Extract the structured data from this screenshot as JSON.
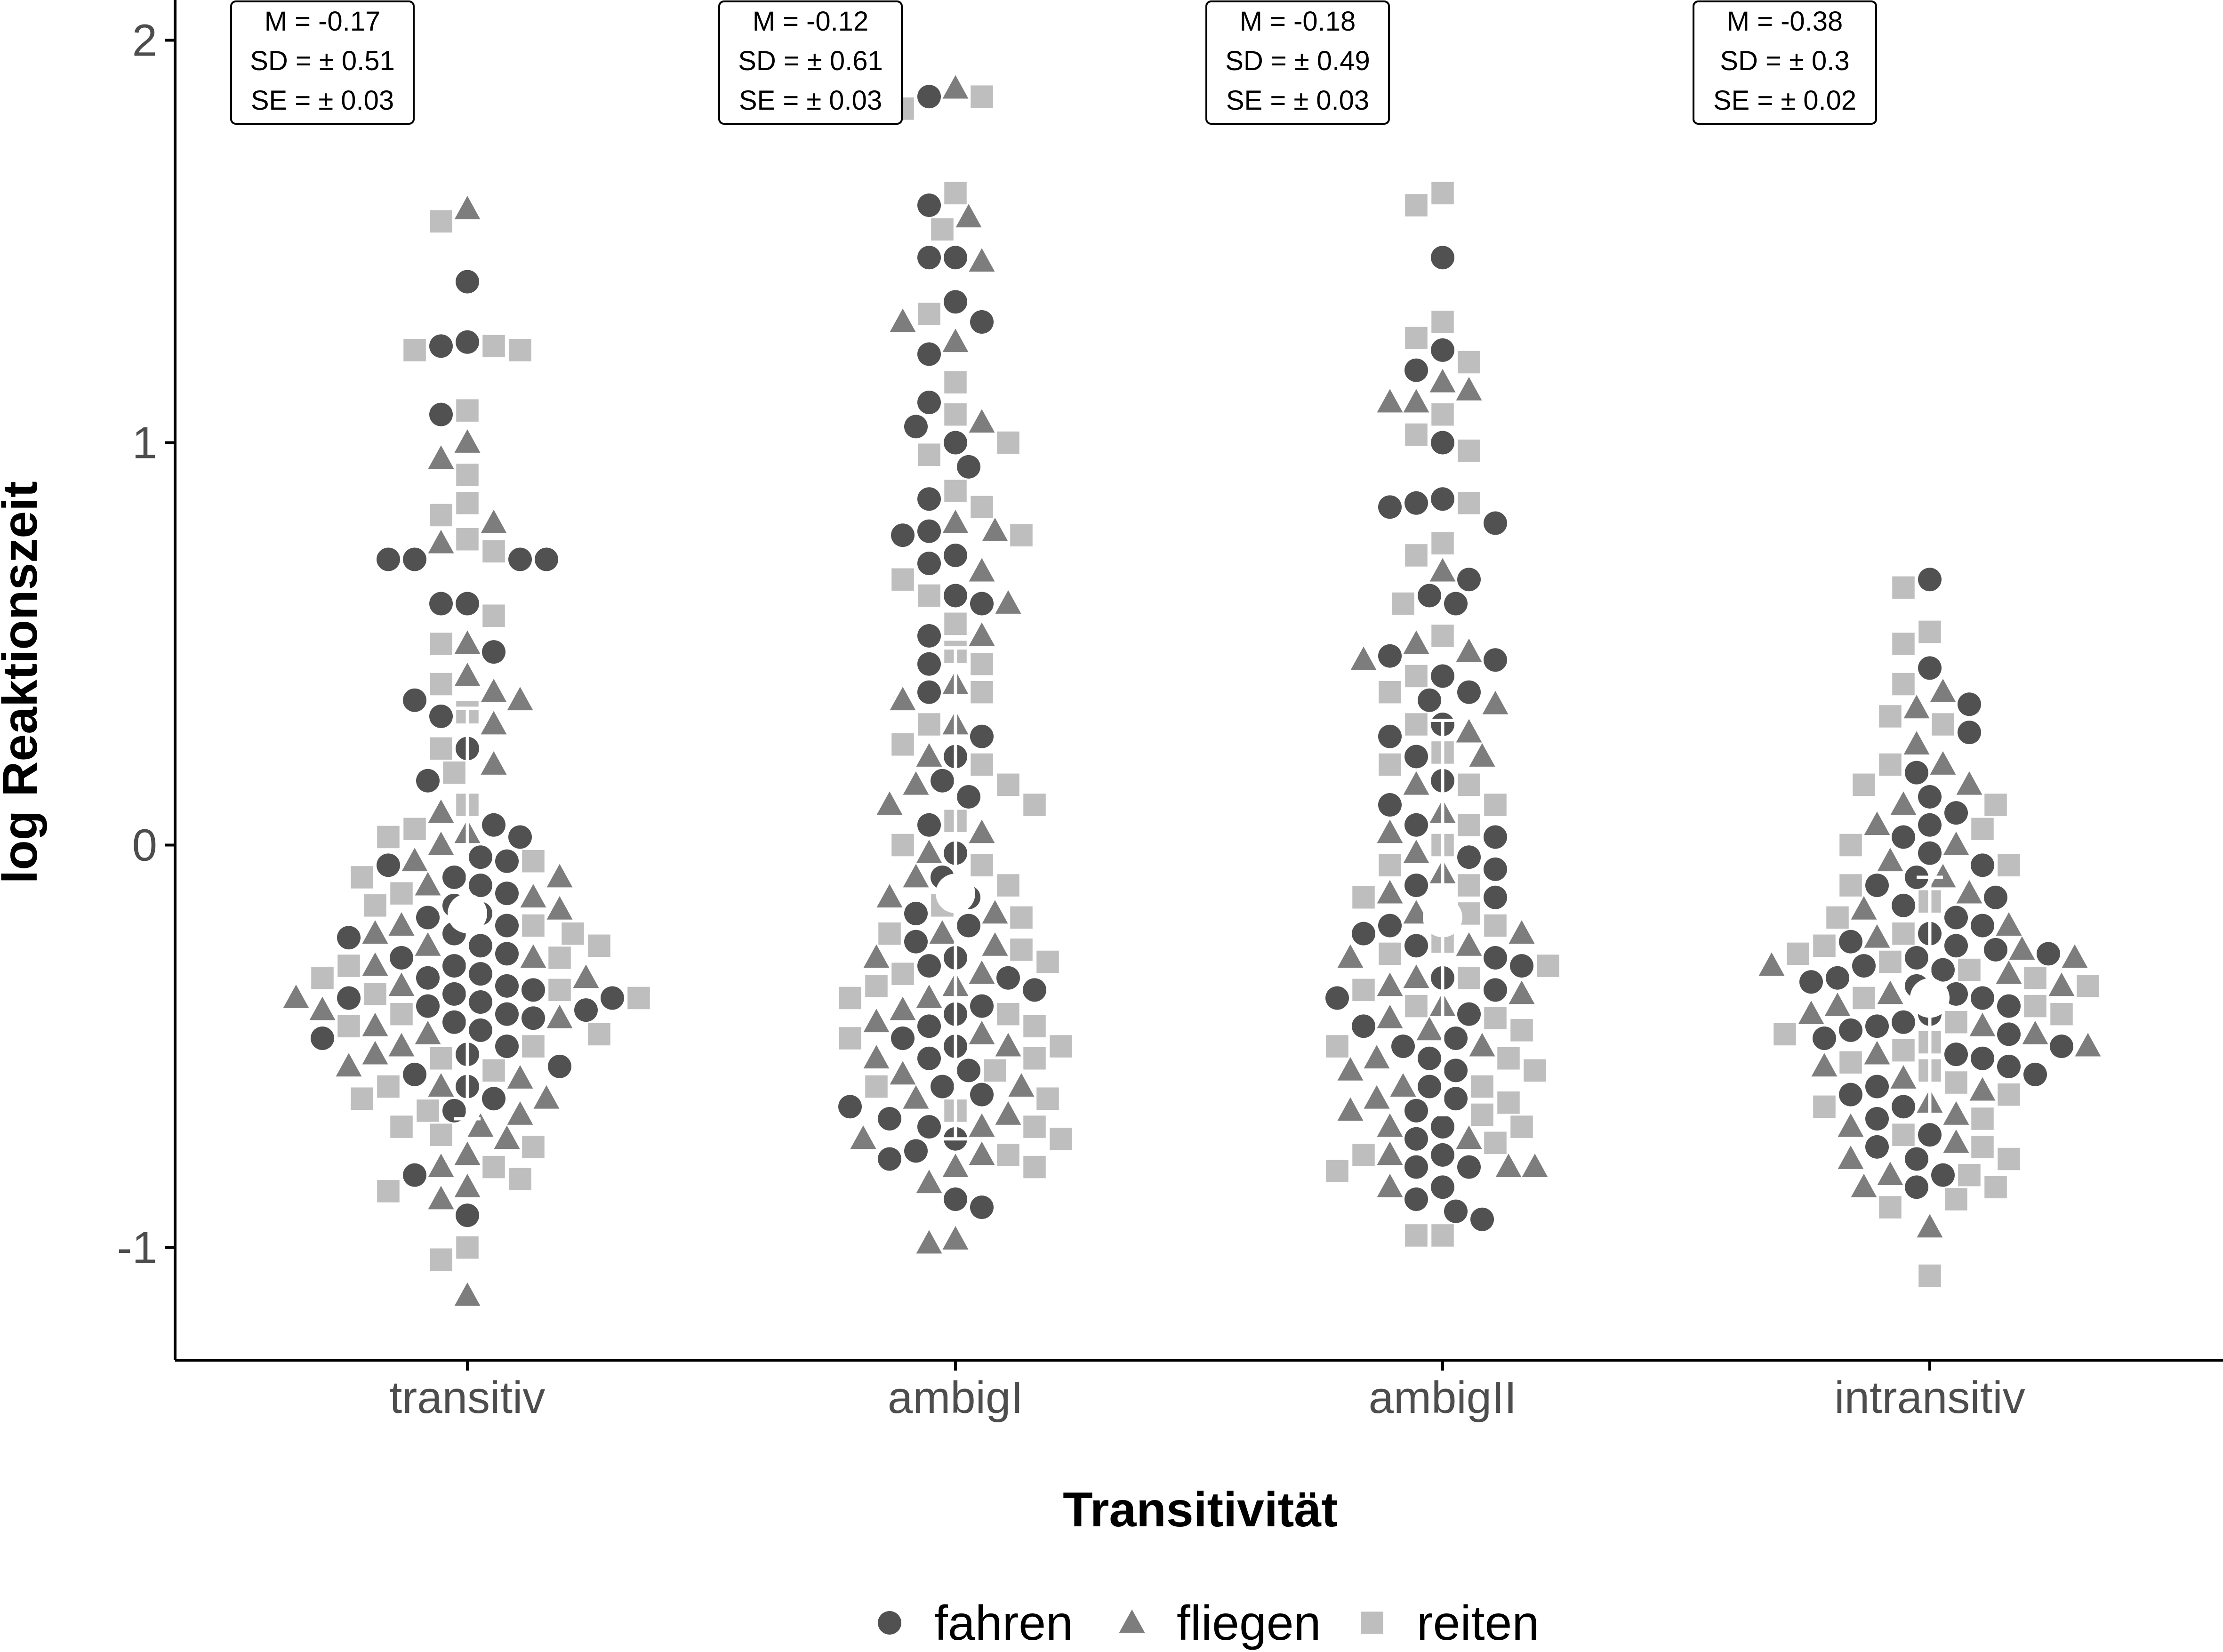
{
  "chart_data": {
    "type": "scatter",
    "subtype": "beeswarm-with-mean-and-sd",
    "xlabel": "Transitivität",
    "ylabel": "log Reaktionszeit",
    "categories": [
      "transitiv",
      "ambigI",
      "ambigII",
      "intransitiv"
    ],
    "ylim": [
      -1.28,
      2.1
    ],
    "yticks": [
      -1,
      0,
      1,
      2
    ],
    "ytick_labels": [
      "-1",
      "0",
      "1",
      "2"
    ],
    "grid": false,
    "legend_position": "bottom",
    "series": [
      {
        "name": "fahren",
        "marker": "circle",
        "color": "#333333"
      },
      {
        "name": "fliegen",
        "marker": "triangle",
        "color": "#666666"
      },
      {
        "name": "reiten",
        "marker": "square",
        "color": "#b3b3b3"
      }
    ],
    "summary": [
      {
        "category": "transitiv",
        "mean": -0.17,
        "sd": 0.51,
        "se": 0.03,
        "label_mean": "M = -0.17",
        "label_sd": "SD = ± 0.51",
        "label_se": "SE = ± 0.03"
      },
      {
        "category": "ambigI",
        "mean": -0.12,
        "sd": 0.61,
        "se": 0.03,
        "label_mean": "M = -0.12",
        "label_sd": "SD = ± 0.61",
        "label_se": "SE = ± 0.03"
      },
      {
        "category": "ambigII",
        "mean": -0.18,
        "sd": 0.49,
        "se": 0.03,
        "label_mean": "M = -0.18",
        "label_sd": "SD = ± 0.49",
        "label_se": "SE = ± 0.03"
      },
      {
        "category": "intransitiv",
        "mean": -0.38,
        "sd": 0.3,
        "se": 0.02,
        "label_mean": "M = -0.38",
        "label_sd": "SD = ± 0.3",
        "label_se": "SE = ± 0.02"
      }
    ],
    "points": {
      "transitiv": {
        "fahren": [
          1.4,
          1.25,
          1.24,
          1.07,
          0.71,
          0.71,
          0.71,
          0.71,
          0.6,
          0.6,
          0.48,
          0.36,
          0.32,
          0.24,
          0.16,
          0.05,
          0.02,
          -0.03,
          -0.04,
          -0.05,
          -0.08,
          -0.1,
          -0.12,
          -0.15,
          -0.17,
          -0.18,
          -0.2,
          -0.22,
          -0.23,
          -0.25,
          -0.27,
          -0.28,
          -0.3,
          -0.32,
          -0.33,
          -0.35,
          -0.36,
          -0.37,
          -0.38,
          -0.38,
          -0.39,
          -0.4,
          -0.41,
          -0.42,
          -0.43,
          -0.44,
          -0.46,
          -0.48,
          -0.5,
          -0.52,
          -0.55,
          -0.57,
          -0.6,
          -0.63,
          -0.66,
          -0.82,
          -0.92
        ],
        "fliegen": [
          1.58,
          1.0,
          0.96,
          0.8,
          0.75,
          0.5,
          0.42,
          0.38,
          0.36,
          0.3,
          0.2,
          0.08,
          0.03,
          0.0,
          -0.04,
          -0.08,
          -0.1,
          -0.13,
          -0.16,
          -0.2,
          -0.22,
          -0.25,
          -0.28,
          -0.3,
          -0.33,
          -0.35,
          -0.38,
          -0.41,
          -0.43,
          -0.45,
          -0.47,
          -0.5,
          -0.52,
          -0.55,
          -0.58,
          -0.6,
          -0.63,
          -0.67,
          -0.7,
          -0.73,
          -0.77,
          -0.8,
          -0.85,
          -0.88,
          -1.12
        ],
        "reiten": [
          1.55,
          1.24,
          1.23,
          1.23,
          1.08,
          0.92,
          0.85,
          0.82,
          0.76,
          0.73,
          0.57,
          0.5,
          0.4,
          0.33,
          0.24,
          0.18,
          0.1,
          0.04,
          0.02,
          -0.04,
          -0.08,
          -0.12,
          -0.15,
          -0.2,
          -0.22,
          -0.25,
          -0.28,
          -0.3,
          -0.33,
          -0.36,
          -0.37,
          -0.38,
          -0.42,
          -0.45,
          -0.47,
          -0.5,
          -0.53,
          -0.56,
          -0.6,
          -0.63,
          -0.66,
          -0.7,
          -0.72,
          -0.75,
          -0.8,
          -0.83,
          -0.86,
          -1.0,
          -1.03
        ]
      },
      "ambigI": {
        "fahren": [
          1.86,
          1.59,
          1.46,
          1.46,
          1.35,
          1.3,
          1.22,
          1.1,
          1.04,
          1.0,
          0.94,
          0.86,
          0.78,
          0.77,
          0.72,
          0.7,
          0.62,
          0.6,
          0.52,
          0.45,
          0.38,
          0.27,
          0.22,
          0.16,
          0.12,
          0.05,
          -0.02,
          -0.08,
          -0.13,
          -0.17,
          -0.2,
          -0.24,
          -0.28,
          -0.3,
          -0.33,
          -0.36,
          -0.4,
          -0.42,
          -0.45,
          -0.48,
          -0.5,
          -0.53,
          -0.56,
          -0.6,
          -0.62,
          -0.65,
          -0.68,
          -0.7,
          -0.73,
          -0.76,
          -0.78,
          -0.88,
          -0.9
        ],
        "fliegen": [
          1.88,
          1.56,
          1.45,
          1.3,
          1.25,
          1.05,
          0.8,
          0.78,
          0.68,
          0.6,
          0.52,
          0.4,
          0.36,
          0.3,
          0.22,
          0.15,
          0.1,
          0.03,
          -0.02,
          -0.08,
          -0.13,
          -0.17,
          -0.22,
          -0.25,
          -0.28,
          -0.32,
          -0.35,
          -0.38,
          -0.41,
          -0.44,
          -0.47,
          -0.5,
          -0.53,
          -0.57,
          -0.6,
          -0.63,
          -0.67,
          -0.7,
          -0.73,
          -0.77,
          -0.8,
          -0.84,
          -0.98,
          -0.99
        ],
        "reiten": [
          1.86,
          1.83,
          1.62,
          1.53,
          1.32,
          1.15,
          1.07,
          1.0,
          0.97,
          0.88,
          0.84,
          0.77,
          0.66,
          0.62,
          0.55,
          0.48,
          0.45,
          0.38,
          0.3,
          0.25,
          0.2,
          0.15,
          0.1,
          0.06,
          0.0,
          -0.05,
          -0.1,
          -0.15,
          -0.18,
          -0.22,
          -0.26,
          -0.29,
          -0.32,
          -0.35,
          -0.38,
          -0.42,
          -0.45,
          -0.48,
          -0.5,
          -0.53,
          -0.56,
          -0.6,
          -0.63,
          -0.66,
          -0.7,
          -0.73,
          -0.77,
          -0.8
        ]
      },
      "ambigII": {
        "fahren": [
          1.46,
          1.23,
          1.18,
          1.0,
          0.86,
          0.85,
          0.84,
          0.8,
          0.66,
          0.62,
          0.6,
          0.47,
          0.46,
          0.42,
          0.38,
          0.36,
          0.3,
          0.27,
          0.22,
          0.16,
          0.1,
          0.05,
          0.02,
          -0.03,
          -0.06,
          -0.1,
          -0.13,
          -0.17,
          -0.2,
          -0.22,
          -0.25,
          -0.28,
          -0.3,
          -0.33,
          -0.36,
          -0.38,
          -0.42,
          -0.45,
          -0.48,
          -0.5,
          -0.53,
          -0.56,
          -0.6,
          -0.63,
          -0.66,
          -0.7,
          -0.73,
          -0.77,
          -0.8,
          -0.8,
          -0.85,
          -0.88,
          -0.91,
          -0.93
        ],
        "fliegen": [
          1.15,
          1.13,
          1.1,
          1.1,
          0.68,
          0.5,
          0.48,
          0.46,
          0.35,
          0.28,
          0.22,
          0.15,
          0.08,
          0.03,
          -0.02,
          -0.07,
          -0.12,
          -0.17,
          -0.22,
          -0.25,
          -0.28,
          -0.33,
          -0.35,
          -0.37,
          -0.4,
          -0.43,
          -0.46,
          -0.5,
          -0.53,
          -0.56,
          -0.6,
          -0.63,
          -0.66,
          -0.7,
          -0.73,
          -0.77,
          -0.8,
          -0.8,
          -0.85
        ],
        "reiten": [
          1.62,
          1.59,
          1.3,
          1.26,
          1.2,
          1.07,
          1.02,
          0.98,
          0.85,
          0.75,
          0.72,
          0.6,
          0.52,
          0.42,
          0.38,
          0.3,
          0.23,
          0.2,
          0.15,
          0.1,
          0.05,
          0.0,
          -0.05,
          -0.1,
          -0.13,
          -0.17,
          -0.2,
          -0.24,
          -0.27,
          -0.3,
          -0.33,
          -0.36,
          -0.4,
          -0.43,
          -0.46,
          -0.5,
          -0.53,
          -0.56,
          -0.6,
          -0.64,
          -0.67,
          -0.7,
          -0.74,
          -0.77,
          -0.81,
          -0.97,
          -0.97
        ]
      },
      "intransitiv": {
        "fahren": [
          0.66,
          0.44,
          0.35,
          0.28,
          0.18,
          0.12,
          0.08,
          0.05,
          0.02,
          -0.02,
          -0.05,
          -0.08,
          -0.1,
          -0.13,
          -0.15,
          -0.18,
          -0.2,
          -0.22,
          -0.24,
          -0.25,
          -0.26,
          -0.27,
          -0.28,
          -0.3,
          -0.31,
          -0.33,
          -0.34,
          -0.35,
          -0.37,
          -0.38,
          -0.4,
          -0.42,
          -0.44,
          -0.45,
          -0.46,
          -0.47,
          -0.48,
          -0.5,
          -0.52,
          -0.53,
          -0.55,
          -0.57,
          -0.6,
          -0.62,
          -0.65,
          -0.68,
          -0.72,
          -0.75,
          -0.78,
          -0.82,
          -0.85
        ],
        "fliegen": [
          0.38,
          0.34,
          0.25,
          0.2,
          0.15,
          0.1,
          0.05,
          0.0,
          -0.04,
          -0.08,
          -0.12,
          -0.16,
          -0.2,
          -0.23,
          -0.26,
          -0.28,
          -0.3,
          -0.32,
          -0.35,
          -0.37,
          -0.4,
          -0.42,
          -0.45,
          -0.47,
          -0.5,
          -0.52,
          -0.55,
          -0.58,
          -0.61,
          -0.64,
          -0.67,
          -0.7,
          -0.74,
          -0.78,
          -0.82,
          -0.85,
          -0.95
        ],
        "reiten": [
          0.64,
          0.53,
          0.5,
          0.4,
          0.32,
          0.3,
          0.2,
          0.15,
          0.1,
          0.04,
          0.0,
          -0.05,
          -0.1,
          -0.14,
          -0.18,
          -0.22,
          -0.25,
          -0.27,
          -0.29,
          -0.31,
          -0.33,
          -0.35,
          -0.38,
          -0.4,
          -0.42,
          -0.44,
          -0.47,
          -0.49,
          -0.51,
          -0.54,
          -0.56,
          -0.59,
          -0.62,
          -0.65,
          -0.68,
          -0.72,
          -0.75,
          -0.78,
          -0.82,
          -0.85,
          -0.88,
          -0.9,
          -1.07
        ]
      }
    }
  }
}
